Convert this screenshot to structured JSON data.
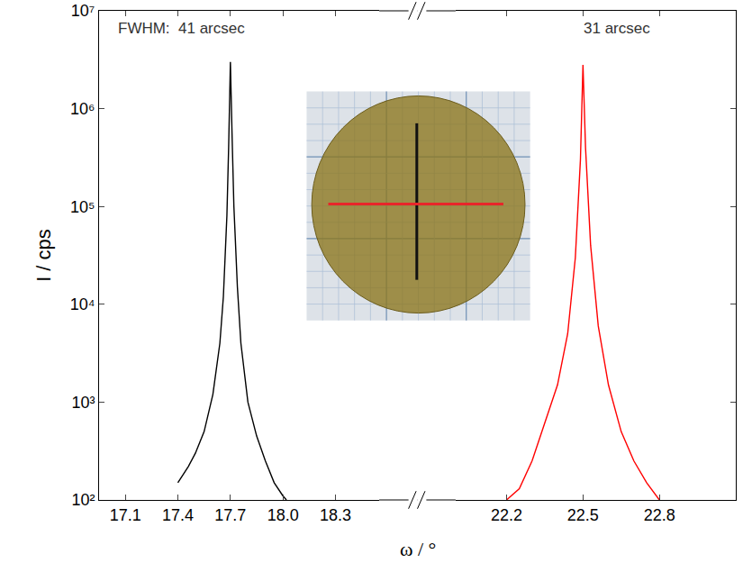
{
  "chart_data": [
    {
      "type": "line",
      "x_label": "ω / °",
      "y_label": "I / cps",
      "log": "y",
      "grid": false,
      "annotation": "FWHM:  41 arcsec",
      "xlim": [
        16.95,
        18.55
      ],
      "xticks": [
        {
          "value": 17.1,
          "label": "17.1"
        },
        {
          "value": 17.4,
          "label": "17.4"
        },
        {
          "value": 17.7,
          "label": "17.7"
        },
        {
          "value": 18.0,
          "label": "18.0"
        },
        {
          "value": 18.3,
          "label": "18.3"
        }
      ],
      "ylim": [
        100,
        10000000
      ],
      "yticks": [
        {
          "value": 100,
          "label": "10²"
        },
        {
          "value": 1000,
          "label": "10³"
        },
        {
          "value": 10000,
          "label": "10⁴"
        },
        {
          "value": 100000,
          "label": "10⁵"
        },
        {
          "value": 1000000,
          "label": "10⁶"
        },
        {
          "value": 10000000,
          "label": "10⁷"
        }
      ],
      "series": [
        {
          "color": "#000000",
          "x": [
            17.4,
            17.43,
            17.46,
            17.5,
            17.55,
            17.6,
            17.64,
            17.66,
            17.68,
            17.69,
            17.7,
            17.71,
            17.72,
            17.74,
            17.76,
            17.8,
            17.85,
            17.9,
            17.95,
            18.0,
            18.02
          ],
          "values": [
            150,
            180,
            220,
            300,
            500,
            1200,
            4000,
            12000,
            80000,
            400000,
            3000000,
            500000,
            100000,
            15000,
            4000,
            1000,
            450,
            250,
            150,
            110,
            100
          ]
        }
      ]
    },
    {
      "type": "line",
      "log": "y",
      "grid": false,
      "annotation": "31 arcsec",
      "xlim": [
        22.0,
        23.1
      ],
      "xticks": [
        {
          "value": 22.2,
          "label": "22.2"
        },
        {
          "value": 22.5,
          "label": "22.5"
        },
        {
          "value": 22.8,
          "label": "22.8"
        }
      ],
      "ylim": [
        100,
        10000000
      ],
      "yticks": [
        {
          "value": 100,
          "label": "10²"
        },
        {
          "value": 1000,
          "label": "10³"
        },
        {
          "value": 10000,
          "label": "10⁴"
        },
        {
          "value": 100000,
          "label": "10⁵"
        },
        {
          "value": 1000000,
          "label": "10⁶"
        },
        {
          "value": 10000000,
          "label": "10⁷"
        }
      ],
      "series": [
        {
          "color": "#ff0000",
          "x": [
            22.2,
            22.25,
            22.3,
            22.35,
            22.4,
            22.44,
            22.47,
            22.49,
            22.5,
            22.51,
            22.53,
            22.56,
            22.6,
            22.65,
            22.7,
            22.75,
            22.8
          ],
          "values": [
            100,
            130,
            250,
            600,
            1500,
            5000,
            30000,
            300000,
            2800000,
            400000,
            40000,
            6000,
            1500,
            500,
            250,
            150,
            100
          ]
        }
      ]
    }
  ]
}
